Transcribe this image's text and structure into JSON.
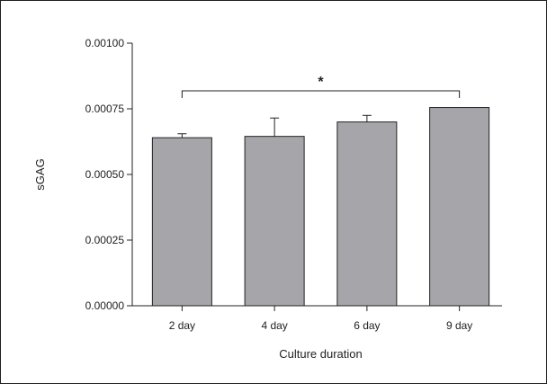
{
  "chart_data": {
    "type": "bar",
    "title": "",
    "xlabel": "Culture duration",
    "ylabel": "sGAG",
    "categories": [
      "2 day",
      "4 day",
      "6 day",
      "9 day"
    ],
    "values": [
      0.00064,
      0.000645,
      0.0007,
      0.000755
    ],
    "error_upper": [
      0.000655,
      0.000715,
      0.000725,
      null
    ],
    "ylim": [
      0,
      0.001
    ],
    "yticks": [
      0.0,
      0.00025,
      0.0005,
      0.00075,
      0.001
    ],
    "ytick_labels": [
      "0.00000",
      "0.00025",
      "0.00050",
      "0.00075",
      "0.00100"
    ],
    "bar_color": "#a6a6aa",
    "annotation": {
      "text": "*",
      "from_category": "2 day",
      "to_category": "9 day"
    },
    "grid": false,
    "legend": "none"
  }
}
